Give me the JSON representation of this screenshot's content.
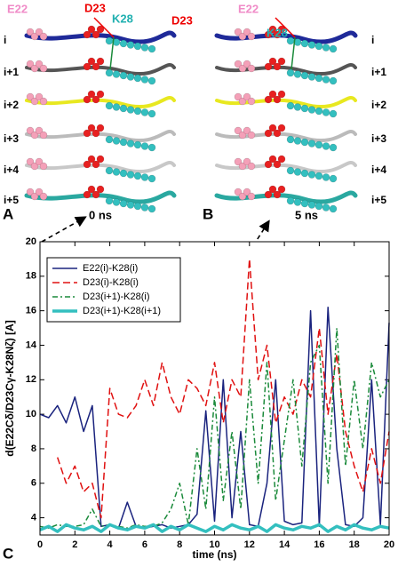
{
  "panels": [
    {
      "label": "A",
      "time": "0 ns",
      "residues": [
        "E22",
        "D23",
        "K28"
      ],
      "rows": [
        "i",
        "i+1",
        "i+2",
        "i+3",
        "i+4",
        "i+5"
      ]
    },
    {
      "label": "B",
      "time": "5 ns",
      "residues": [
        "E22",
        "D23",
        "K28"
      ],
      "rows": [
        "i",
        "i+1",
        "i+2",
        "i+3",
        "i+4",
        "i+5"
      ]
    }
  ],
  "chart_data": {
    "type": "line",
    "panel_label": "C",
    "xlabel": "time (ns)",
    "ylabel": "d(E22Cδ/D23Cγ-K28Nζ) [A]",
    "xlim": [
      0,
      20
    ],
    "ylim": [
      3,
      20
    ],
    "xticks": [
      0,
      2,
      4,
      6,
      8,
      10,
      12,
      14,
      16,
      18,
      20
    ],
    "yticks": [
      4,
      6,
      8,
      10,
      12,
      14,
      16,
      18,
      20
    ],
    "legend": "upper left",
    "x": [
      0,
      0.5,
      1,
      1.5,
      2,
      2.5,
      3,
      3.5,
      4,
      4.5,
      5,
      5.5,
      6,
      6.5,
      7,
      7.5,
      8,
      8.5,
      9,
      9.5,
      10,
      10.5,
      11,
      11.5,
      12,
      12.5,
      13,
      13.5,
      14,
      14.5,
      15,
      15.5,
      16,
      16.5,
      17,
      17.5,
      18,
      18.5,
      19,
      19.5,
      20
    ],
    "series": [
      {
        "name": "E22(i)-K28(i)",
        "color": "#1a237e",
        "dash": "none",
        "width": 1.5,
        "values": [
          10,
          9.8,
          10.5,
          9.5,
          11,
          9,
          10.5,
          3.5,
          3.6,
          3.4,
          4.9,
          3.5,
          3.4,
          3.5,
          3.6,
          3.4,
          3.5,
          3.6,
          4.2,
          10.2,
          3.8,
          12,
          4,
          9,
          3.6,
          3.5,
          6,
          12,
          3.8,
          3.6,
          3.7,
          16,
          3.5,
          16.2,
          8,
          3.6,
          3.5,
          4,
          12,
          3.6,
          15.3
        ]
      },
      {
        "name": "D23(i)-K28(i)",
        "color": "#e01010",
        "dash": "8,4",
        "width": 1.5,
        "values": [
          null,
          null,
          7.5,
          6,
          7,
          5.5,
          6,
          4,
          11.5,
          10,
          9.8,
          10.5,
          12,
          10.5,
          13,
          11,
          10,
          12,
          11.5,
          10.5,
          13,
          9.5,
          12,
          11,
          19,
          12,
          14,
          9.5,
          11,
          10,
          12,
          11,
          15,
          10,
          13.5,
          9,
          7,
          5.5,
          8,
          6,
          9
        ]
      },
      {
        "name": "D23(i+1)-K28(i)",
        "color": "#1a8a3a",
        "dash": "6,3,2,3",
        "width": 1.5,
        "values": [
          3.5,
          3.4,
          3.6,
          3.5,
          3.5,
          3.6,
          4.5,
          3.5,
          3.6,
          3.5,
          3.4,
          3.6,
          3.5,
          3.5,
          3.7,
          4.5,
          6,
          3.6,
          8,
          4.5,
          11,
          5,
          9,
          4.5,
          12,
          6,
          13,
          5,
          8.5,
          12,
          7,
          13,
          14,
          6,
          15,
          7,
          12,
          8,
          13,
          11,
          12
        ]
      },
      {
        "name": "D23(i+1)-K28(i+1)",
        "color": "#33bfbf",
        "dash": "none",
        "width": 3.5,
        "values": [
          3.3,
          3.5,
          3.2,
          3.6,
          3.4,
          3.3,
          3.5,
          3.2,
          3.6,
          3.4,
          3.3,
          3.5,
          3.4,
          3.6,
          3.2,
          3.5,
          3.3,
          3.6,
          3.4,
          3.2,
          3.5,
          3.3,
          3.6,
          3.4,
          3.3,
          3.5,
          3.2,
          3.6,
          3.4,
          3.3,
          3.5,
          3.4,
          3.6,
          3.2,
          3.5,
          3.3,
          3.6,
          3.4,
          3.3,
          3.5,
          3.4
        ]
      }
    ]
  }
}
